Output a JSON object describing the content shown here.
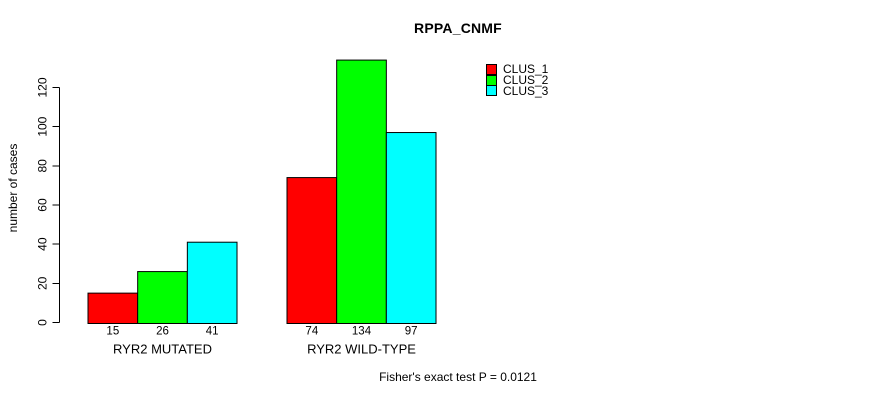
{
  "chart_data": {
    "type": "bar",
    "title": "RPPA_CNMF",
    "categories": [
      "RYR2 MUTATED",
      "RYR2 WILD-TYPE"
    ],
    "series": [
      {
        "name": "CLUS_1",
        "color": "#ff0000",
        "values": [
          15,
          74
        ]
      },
      {
        "name": "CLUS_2",
        "color": "#00ff00",
        "values": [
          26,
          134
        ]
      },
      {
        "name": "CLUS_3",
        "color": "#00ffff",
        "values": [
          41,
          97
        ]
      }
    ],
    "xlabel": "",
    "ylabel": "number of cases",
    "ylim": [
      0,
      140
    ],
    "yticks": [
      0,
      20,
      40,
      60,
      80,
      100,
      120
    ],
    "grid": false,
    "legend_position": "top-right",
    "bar_border_color": "#000000",
    "text_color": "#000000",
    "background": "#ffffff",
    "value_labels_shown": true,
    "annotation": "Fisher's exact test P = 0.0121"
  }
}
